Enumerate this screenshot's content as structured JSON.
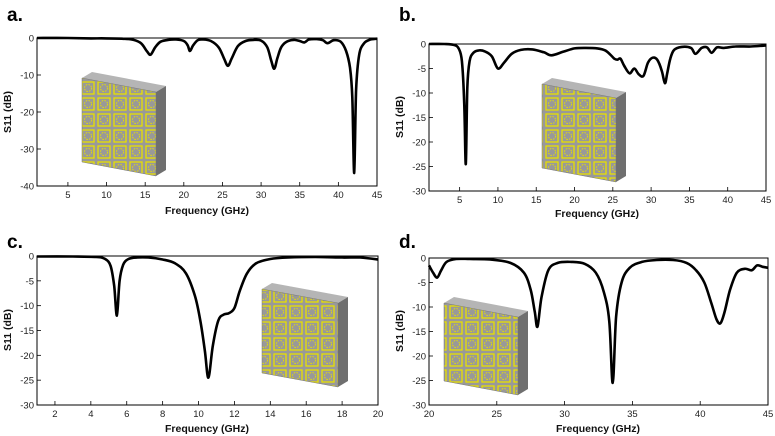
{
  "chart_data": [
    {
      "type": "line",
      "panel_label": "a.",
      "xlabel": "Frequency (GHz)",
      "ylabel": "S11 (dB)",
      "xlim": [
        1,
        45
      ],
      "ylim": [
        -40,
        0
      ],
      "xticks": [
        5,
        10,
        15,
        20,
        25,
        30,
        35,
        40,
        45
      ],
      "yticks": [
        0,
        -10,
        -20,
        -30,
        -40
      ],
      "grid": false,
      "inset": "metasurface-unit-cell",
      "series": [
        {
          "name": "S11",
          "x": [
            1,
            5,
            8,
            10,
            12,
            13.5,
            14.5,
            15.2,
            15.7,
            16.3,
            17,
            18,
            19,
            20,
            20.5,
            20.8,
            21.2,
            21.8,
            22.5,
            23.5,
            24.5,
            25.2,
            25.7,
            26.2,
            27,
            28,
            29,
            30,
            30.8,
            31.3,
            31.7,
            32.1,
            32.6,
            33.3,
            34.2,
            35,
            35.6,
            36.2,
            37.2,
            38,
            38.6,
            39.4,
            40.3,
            41,
            41.5,
            41.8,
            42.05,
            42.3,
            42.7,
            43.3,
            44,
            45
          ],
          "y": [
            0,
            0,
            -0.1,
            -0.1,
            -0.2,
            -0.5,
            -1.5,
            -3.5,
            -4.5,
            -2.5,
            -1,
            -0.5,
            -0.4,
            -0.8,
            -2,
            -3.5,
            -2,
            -0.6,
            -0.4,
            -0.8,
            -2.5,
            -5.5,
            -7.5,
            -5.5,
            -2.2,
            -0.8,
            -0.5,
            -0.7,
            -2.5,
            -6,
            -8.3,
            -5.5,
            -2.5,
            -1,
            -0.5,
            -0.8,
            -1.2,
            -0.4,
            -0.3,
            -0.6,
            -1.4,
            -0.6,
            -1,
            -3.5,
            -8,
            -16,
            -36.5,
            -14,
            -4.5,
            -1.5,
            -0.5,
            -0.2
          ]
        }
      ]
    },
    {
      "type": "line",
      "panel_label": "b.",
      "xlabel": "Frequency (GHz)",
      "ylabel": "S11 (dB)",
      "xlim": [
        1,
        45
      ],
      "ylim": [
        -30,
        0
      ],
      "xticks": [
        5,
        10,
        15,
        20,
        25,
        30,
        35,
        40,
        45
      ],
      "yticks": [
        0,
        -5,
        -10,
        -15,
        -20,
        -25,
        -30
      ],
      "grid": false,
      "inset": "metasurface-unit-cell",
      "series": [
        {
          "name": "S11",
          "x": [
            1,
            3,
            4.3,
            4.9,
            5.3,
            5.6,
            5.8,
            6.0,
            6.3,
            6.8,
            7.5,
            8.3,
            9.2,
            10,
            10.8,
            11.8,
            13,
            14.5,
            16,
            17,
            18.5,
            20,
            21.5,
            23,
            24,
            24.7,
            25.2,
            25.6,
            26,
            26.5,
            27.2,
            27.8,
            28.4,
            29,
            29.6,
            30.2,
            30.8,
            31.4,
            31.8,
            32.1,
            32.5,
            33,
            34,
            35.2,
            35.8,
            36.6,
            37.3,
            37.9,
            38.6,
            39.5,
            41,
            43,
            45
          ],
          "y": [
            0,
            0,
            -0.2,
            -1,
            -3.5,
            -12,
            -24.5,
            -9,
            -3.5,
            -1.8,
            -1.3,
            -1.5,
            -2.5,
            -5,
            -3.8,
            -2,
            -1.2,
            -1.1,
            -1.7,
            -2.3,
            -1.6,
            -0.9,
            -0.8,
            -0.9,
            -1.3,
            -2.2,
            -3,
            -3.2,
            -3,
            -4.5,
            -6,
            -5,
            -6.2,
            -6.5,
            -3.8,
            -2.8,
            -3.2,
            -5.5,
            -8,
            -6,
            -3,
            -1.2,
            -0.6,
            -0.8,
            -2,
            -0.8,
            -0.7,
            -1.8,
            -0.7,
            -0.8,
            -0.5,
            -0.5,
            -0.3
          ]
        }
      ]
    },
    {
      "type": "line",
      "panel_label": "c.",
      "xlabel": "Frequency (GHz)",
      "ylabel": "S11 (dB)",
      "xlim": [
        1,
        20
      ],
      "ylim": [
        -30,
        0
      ],
      "xticks": [
        2,
        4,
        6,
        8,
        10,
        12,
        14,
        16,
        18,
        20
      ],
      "yticks": [
        0,
        -5,
        -10,
        -15,
        -20,
        -25,
        -30
      ],
      "grid": false,
      "inset": "metasurface-unit-cell",
      "series": [
        {
          "name": "S11",
          "x": [
            1,
            3,
            4.3,
            4.8,
            5.1,
            5.3,
            5.45,
            5.6,
            5.8,
            6.1,
            6.6,
            7.2,
            8,
            8.7,
            9.3,
            9.8,
            10.1,
            10.35,
            10.55,
            10.8,
            11.1,
            11.4,
            11.7,
            12,
            12.3,
            12.7,
            13.2,
            14,
            15,
            16.5,
            18,
            19,
            20
          ],
          "y": [
            -0.1,
            -0.1,
            -0.2,
            -0.6,
            -2,
            -6,
            -12,
            -5,
            -1.8,
            -0.6,
            -0.3,
            -0.3,
            -0.7,
            -1.5,
            -3.5,
            -8,
            -13,
            -19,
            -24.5,
            -18,
            -13,
            -11.8,
            -11.5,
            -10.5,
            -7,
            -3.5,
            -1.5,
            -0.6,
            -0.3,
            -0.2,
            -0.3,
            -0.3,
            -0.7
          ]
        }
      ]
    },
    {
      "type": "line",
      "panel_label": "d.",
      "xlabel": "Frequency (GHz)",
      "ylabel": "S11 (dB)",
      "xlim": [
        20,
        45
      ],
      "ylim": [
        -30,
        0
      ],
      "xticks": [
        20,
        25,
        30,
        35,
        40,
        45
      ],
      "yticks": [
        0,
        -5,
        -10,
        -15,
        -20,
        -25,
        -30
      ],
      "grid": false,
      "inset": "metasurface-unit-cell",
      "series": [
        {
          "name": "S11",
          "x": [
            20,
            20.3,
            20.6,
            20.9,
            21.3,
            22,
            23,
            24.5,
            26,
            27,
            27.5,
            27.8,
            28,
            28.3,
            28.8,
            29.5,
            30.5,
            31.5,
            32.3,
            32.9,
            33.3,
            33.55,
            33.8,
            34.2,
            34.8,
            35.7,
            36.8,
            38,
            39,
            39.7,
            40.3,
            40.8,
            41.2,
            41.5,
            41.8,
            42.2,
            42.7,
            43.3,
            43.8,
            44.2,
            44.6,
            45
          ],
          "y": [
            -1.5,
            -3,
            -4,
            -2.5,
            -0.8,
            -0.2,
            -0.2,
            -0.3,
            -1,
            -3,
            -6.5,
            -11,
            -14,
            -8,
            -2.5,
            -1,
            -0.8,
            -1.2,
            -3,
            -7,
            -13,
            -25.5,
            -12,
            -5,
            -2,
            -0.8,
            -0.4,
            -0.4,
            -1,
            -2.5,
            -5,
            -9,
            -12.5,
            -13.3,
            -11,
            -6.5,
            -3,
            -2.2,
            -2.5,
            -1.5,
            -1.8,
            -2
          ]
        }
      ]
    }
  ]
}
